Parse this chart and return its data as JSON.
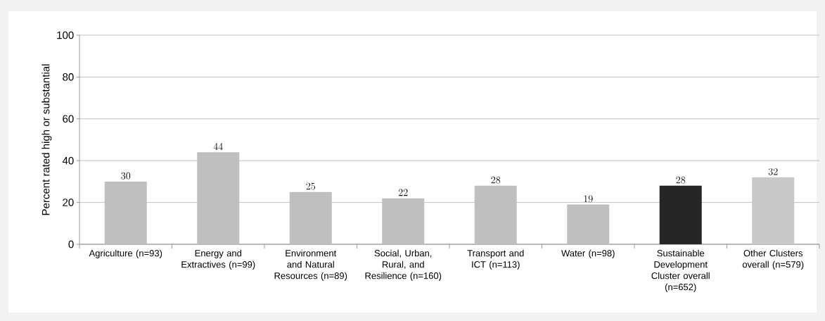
{
  "chart_data": {
    "type": "bar",
    "ylabel": "Percent rated high or substantial",
    "categories": [
      "Agriculture (n=93)",
      "Energy and Extractives (n=99)",
      "Environment and Natural Resources (n=89)",
      "Social, Urban, Rural, and Resilience (n=160)",
      "Transport and ICT (n=113)",
      "Water   (n=98)",
      "Sustainable Development Cluster overall (n=652)",
      "Other Clusters overall (n=579)"
    ],
    "values": [
      30,
      44,
      25,
      22,
      28,
      19,
      28,
      32
    ],
    "colors": [
      "#bfbfbf",
      "#bfbfbf",
      "#bfbfbf",
      "#bfbfbf",
      "#bfbfbf",
      "#bfbfbf",
      "#262626",
      "#c8c8c8"
    ],
    "ylim": [
      0,
      100
    ],
    "yticks": [
      0,
      20,
      40,
      60,
      80,
      100
    ],
    "grid": "y",
    "data_labels": true
  }
}
